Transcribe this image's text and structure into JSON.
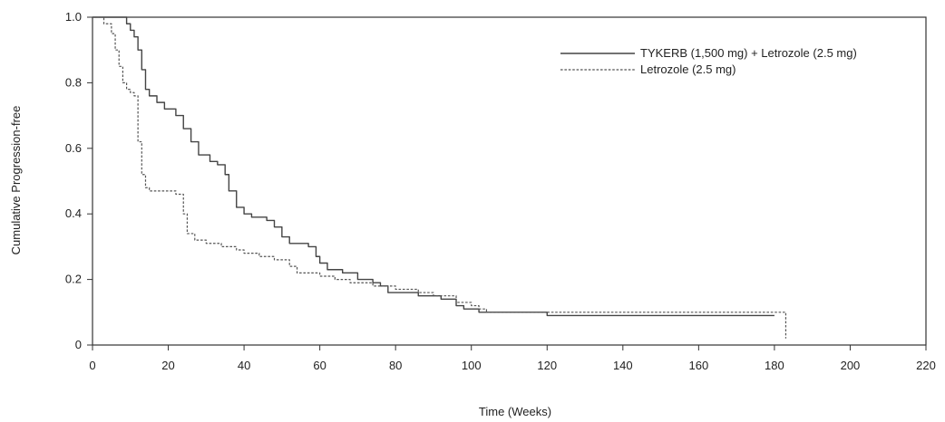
{
  "chart_data": {
    "type": "line",
    "title": "",
    "xlabel": "Time (Weeks)",
    "ylabel": "Cumulative Progression-free",
    "xlim": [
      0,
      220
    ],
    "ylim": [
      0,
      1.0
    ],
    "x_ticks": [
      0,
      20,
      40,
      60,
      80,
      100,
      120,
      140,
      160,
      180,
      200,
      220
    ],
    "y_ticks": [
      0,
      0.2,
      0.4,
      0.6,
      0.8,
      1.0
    ],
    "y_tick_labels": [
      "0",
      "0.2",
      "0.4",
      "0.6",
      "0.8",
      "1.0"
    ],
    "grid": false,
    "legend_position": "top-right",
    "series": [
      {
        "name": "TYKERB (1,500 mg) + Letrozole (2.5 mg)",
        "line_style": "solid",
        "color": "#444444",
        "points": [
          [
            0,
            1.0
          ],
          [
            8,
            1.0
          ],
          [
            9,
            0.98
          ],
          [
            10,
            0.96
          ],
          [
            11,
            0.94
          ],
          [
            12,
            0.9
          ],
          [
            13,
            0.84
          ],
          [
            14,
            0.78
          ],
          [
            15,
            0.76
          ],
          [
            17,
            0.74
          ],
          [
            19,
            0.72
          ],
          [
            22,
            0.7
          ],
          [
            24,
            0.66
          ],
          [
            26,
            0.62
          ],
          [
            28,
            0.58
          ],
          [
            31,
            0.56
          ],
          [
            33,
            0.55
          ],
          [
            35,
            0.52
          ],
          [
            36,
            0.47
          ],
          [
            38,
            0.42
          ],
          [
            40,
            0.4
          ],
          [
            42,
            0.39
          ],
          [
            46,
            0.38
          ],
          [
            48,
            0.36
          ],
          [
            50,
            0.33
          ],
          [
            52,
            0.31
          ],
          [
            57,
            0.3
          ],
          [
            59,
            0.27
          ],
          [
            60,
            0.25
          ],
          [
            62,
            0.23
          ],
          [
            66,
            0.22
          ],
          [
            70,
            0.2
          ],
          [
            74,
            0.19
          ],
          [
            76,
            0.18
          ],
          [
            78,
            0.16
          ],
          [
            86,
            0.15
          ],
          [
            92,
            0.14
          ],
          [
            96,
            0.12
          ],
          [
            98,
            0.11
          ],
          [
            102,
            0.1
          ],
          [
            120,
            0.09
          ],
          [
            180,
            0.09
          ]
        ]
      },
      {
        "name": "Letrozole (2.5 mg)",
        "line_style": "dashed",
        "color": "#555555",
        "points": [
          [
            0,
            1.0
          ],
          [
            3,
            0.98
          ],
          [
            5,
            0.95
          ],
          [
            6,
            0.9
          ],
          [
            7,
            0.85
          ],
          [
            8,
            0.8
          ],
          [
            9,
            0.78
          ],
          [
            10,
            0.77
          ],
          [
            11,
            0.76
          ],
          [
            12,
            0.62
          ],
          [
            13,
            0.52
          ],
          [
            14,
            0.48
          ],
          [
            15,
            0.47
          ],
          [
            22,
            0.46
          ],
          [
            24,
            0.4
          ],
          [
            25,
            0.34
          ],
          [
            27,
            0.32
          ],
          [
            30,
            0.31
          ],
          [
            34,
            0.3
          ],
          [
            38,
            0.29
          ],
          [
            40,
            0.28
          ],
          [
            44,
            0.27
          ],
          [
            48,
            0.26
          ],
          [
            52,
            0.24
          ],
          [
            54,
            0.22
          ],
          [
            60,
            0.21
          ],
          [
            64,
            0.2
          ],
          [
            68,
            0.19
          ],
          [
            74,
            0.18
          ],
          [
            80,
            0.17
          ],
          [
            86,
            0.16
          ],
          [
            90,
            0.15
          ],
          [
            96,
            0.13
          ],
          [
            100,
            0.12
          ],
          [
            102,
            0.11
          ],
          [
            104,
            0.1
          ],
          [
            183,
            0.1
          ],
          [
            183,
            0.02
          ]
        ]
      }
    ]
  }
}
